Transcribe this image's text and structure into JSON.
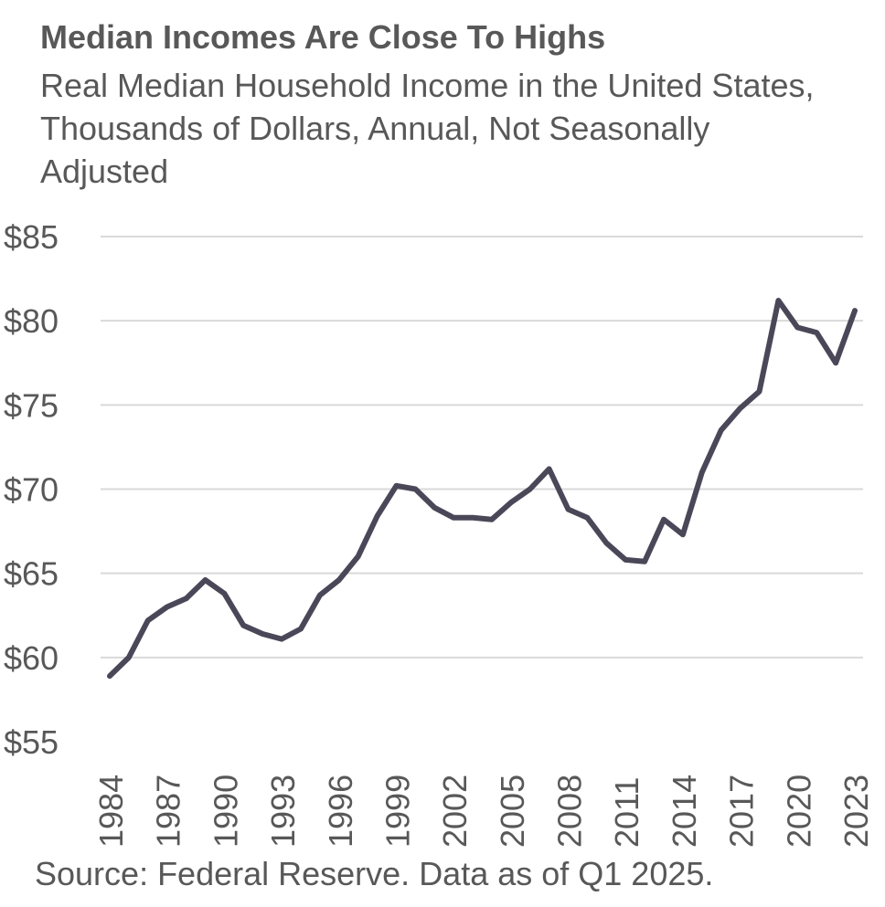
{
  "chart_data": {
    "type": "line",
    "title": "Median Incomes Are Close To Highs",
    "subtitle": "Real Median Household Income in the United States, Thousands of Dollars, Annual, Not Seasonally Adjusted",
    "xlabel": "",
    "ylabel": "",
    "ylim": [
      55,
      85
    ],
    "yticks": [
      "$55",
      "$60",
      "$65",
      "$70",
      "$75",
      "$80",
      "$85"
    ],
    "yticks_values": [
      55,
      60,
      65,
      70,
      75,
      80,
      85
    ],
    "xticks": [
      "1984",
      "1987",
      "1990",
      "1993",
      "1996",
      "1999",
      "2002",
      "2005",
      "2008",
      "2011",
      "2014",
      "2017",
      "2020",
      "2023"
    ],
    "grid": true,
    "line_color": "#4a4858",
    "series": [
      {
        "x": [
          1984,
          1985,
          1986,
          1987,
          1988,
          1989,
          1990,
          1991,
          1992,
          1993,
          1994,
          1995,
          1996,
          1997,
          1998,
          1999,
          2000,
          2001,
          2002,
          2003,
          2004,
          2005,
          2006,
          2007,
          2008,
          2009,
          2010,
          2011,
          2012,
          2013,
          2014,
          2015,
          2016,
          2017,
          2018,
          2019,
          2020,
          2021,
          2022,
          2023
        ],
        "values": [
          58.9,
          60.0,
          62.2,
          63.0,
          63.5,
          64.6,
          63.8,
          61.9,
          61.4,
          61.1,
          61.7,
          63.7,
          64.6,
          66.0,
          68.4,
          70.2,
          70.0,
          68.9,
          68.3,
          68.3,
          68.2,
          69.2,
          70.0,
          71.2,
          68.8,
          68.3,
          66.8,
          65.8,
          65.7,
          68.2,
          67.3,
          71.0,
          73.5,
          74.8,
          75.8,
          81.2,
          79.6,
          79.3,
          77.5,
          80.6
        ]
      }
    ]
  },
  "source": "Source: Federal Reserve. Data as of Q1 2025."
}
